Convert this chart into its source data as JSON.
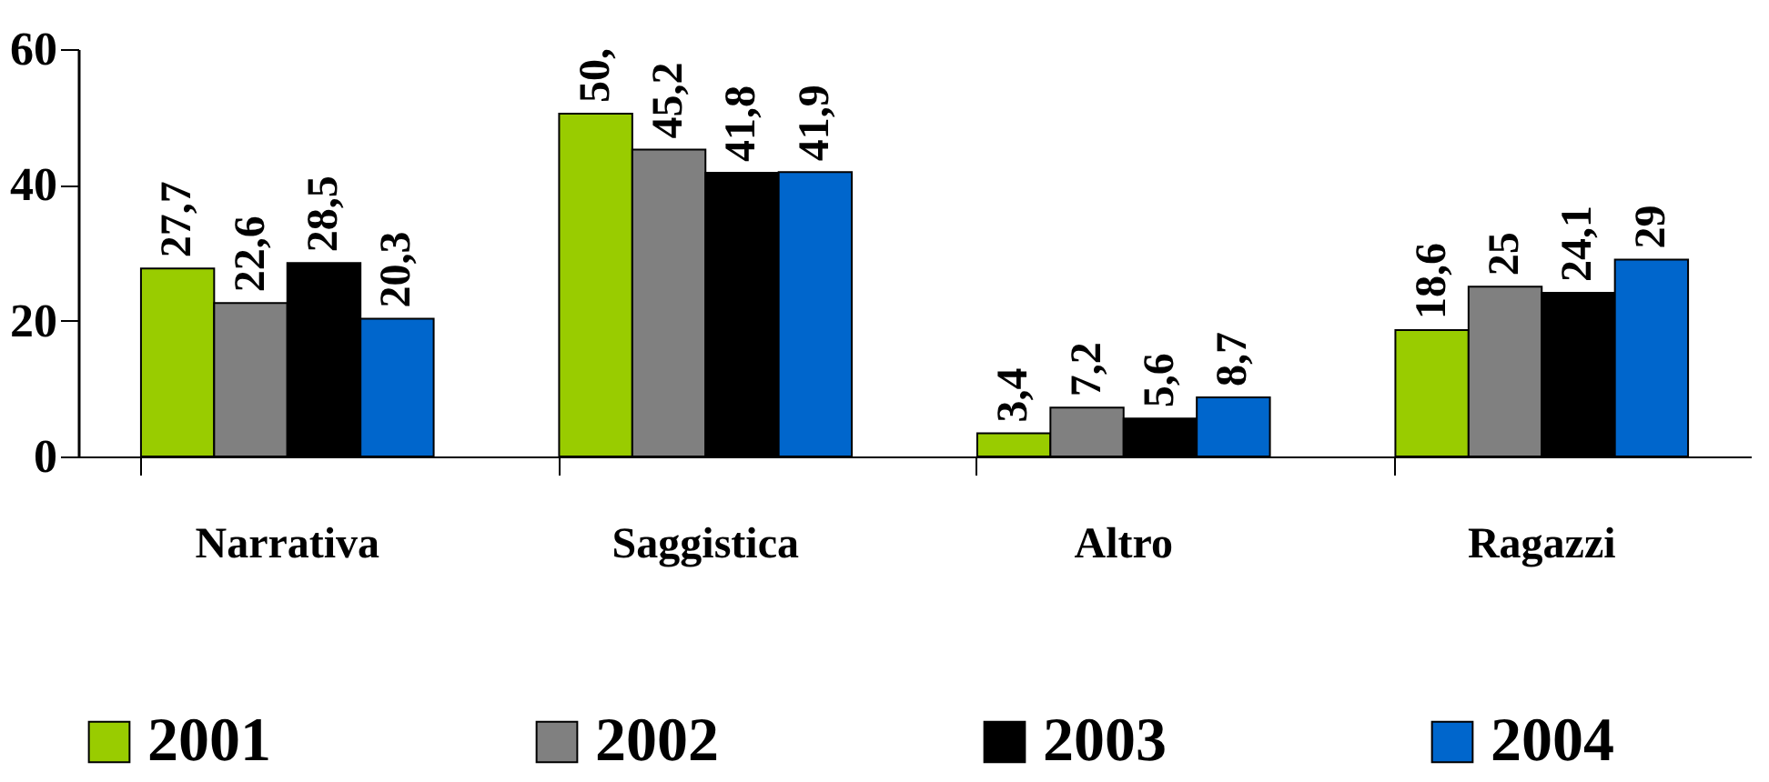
{
  "chart_data": {
    "type": "bar",
    "categories": [
      "Narrativa",
      "Saggistica",
      "Altro",
      "Ragazzi"
    ],
    "series": [
      {
        "name": "2001",
        "color": "#99cc00",
        "values": [
          27.7,
          50.5,
          3.4,
          18.6
        ],
        "value_labels": [
          "27,7",
          "50,",
          "3,4",
          "18,6"
        ]
      },
      {
        "name": "2002",
        "color": "#808080",
        "values": [
          22.6,
          45.2,
          7.2,
          25
        ],
        "value_labels": [
          "22,6",
          "45,2",
          "7,2",
          "25"
        ]
      },
      {
        "name": "2003",
        "color": "#000000",
        "values": [
          28.5,
          41.8,
          5.6,
          24.1
        ],
        "value_labels": [
          "28,5",
          "41,8",
          "5,6",
          "24,1"
        ]
      },
      {
        "name": "2004",
        "color": "#0066cc",
        "values": [
          20.3,
          41.9,
          8.7,
          29
        ],
        "value_labels": [
          "20,3",
          "41,9",
          "8,7",
          "29"
        ]
      }
    ],
    "ylim": [
      0,
      60
    ],
    "yticks": [
      0,
      20,
      40,
      60
    ],
    "grid": false,
    "legend": "bottom"
  }
}
